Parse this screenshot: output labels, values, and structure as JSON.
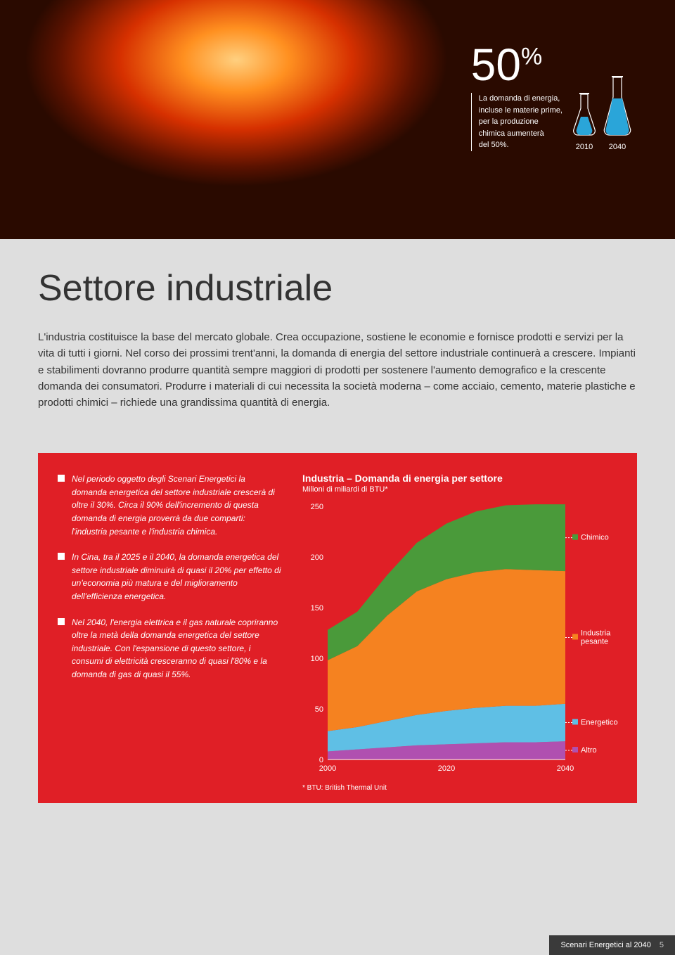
{
  "hero": {
    "stat_number": "50",
    "stat_percent": "%",
    "stat_text": "La domanda di energia,\nincluse le materie prime,\nper la produzione\nchimica aumenterà\ndel 50%.",
    "flask_2010": "2010",
    "flask_2040": "2040"
  },
  "title": "Settore industriale",
  "intro": "L'industria costituisce la base del mercato globale. Crea occupazione, sostiene le economie e fornisce prodotti e servizi per la vita di tutti i giorni. Nel corso dei prossimi trent'anni, la domanda di energia del settore industriale continuerà a crescere. Impianti e stabilimenti dovranno produrre quantità sempre maggiori di prodotti per sostenere l'aumento demografico e la crescente domanda dei consumatori. Produrre i materiali di cui necessita la società moderna – come acciaio, cemento, materie plastiche e prodotti chimici – richiede una grandissima quantità di energia.",
  "bullets": [
    "Nel periodo oggetto degli Scenari Energetici la domanda energetica del settore industriale crescerà di oltre il 30%. Circa il 90% dell'incremento di questa domanda di energia proverrà da due comparti: l'industria pesante e l'industria chimica.",
    "In Cina, tra il 2025 e il 2040, la domanda energetica del settore industriale diminuirà di quasi il 20% per effetto di un'economia più matura e del miglioramento dell'efficienza energetica.",
    "Nel 2040, l'energia elettrica e il gas naturale copriranno oltre la metà della domanda energetica del settore industriale. Con l'espansione di questo settore, i consumi di elettricità cresceranno di quasi l'80% e la domanda di gas di quasi il 55%."
  ],
  "chart": {
    "title": "Industria – Domanda di energia per settore",
    "subtitle": "Milioni di miliardi di BTU*",
    "footnote": "* BTU: British Thermal Unit",
    "type": "stacked-area",
    "x_start": 2000,
    "x_end": 2040,
    "x_ticks": [
      2000,
      2020,
      2040
    ],
    "y_min": 0,
    "y_max": 250,
    "y_ticks": [
      0,
      50,
      100,
      150,
      200,
      250
    ],
    "series": [
      {
        "name": "Altro",
        "color": "#b050b0",
        "legend": "Altro",
        "values": [
          8,
          10,
          12,
          14,
          15,
          16,
          17,
          17,
          18
        ]
      },
      {
        "name": "Energetico",
        "color": "#5fbfe5",
        "legend": "Energetico",
        "values": [
          20,
          22,
          26,
          30,
          33,
          35,
          36,
          36,
          37
        ]
      },
      {
        "name": "Industria pesante",
        "color": "#f58220",
        "legend": "Industria\npesante",
        "values": [
          70,
          80,
          104,
          122,
          130,
          134,
          135,
          134,
          131
        ]
      },
      {
        "name": "Chimico",
        "color": "#4a9a3a",
        "legend": "Chimico",
        "values": [
          30,
          34,
          40,
          48,
          55,
          60,
          63,
          65,
          66
        ]
      }
    ],
    "legend_box": "#fff",
    "axis_color": "#ffffff",
    "text_color": "#ffffff",
    "label_fontsize": 11
  },
  "footer": {
    "text": "Scenari Energetici al 2040",
    "page": "5"
  }
}
